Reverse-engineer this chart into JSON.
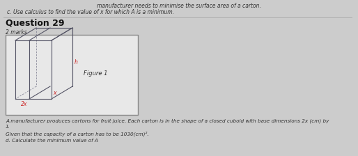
{
  "bg_color": "#cccccc",
  "panel_bg": "#e8e8e8",
  "panel_border": "#888888",
  "line1": "manufacturer needs to minimise the surface area of a carton.",
  "line2": "c. Use calculus to find the value of x for which A is a minimum.",
  "question_title": "Question 29",
  "marks": "2 marks",
  "figure_label": "Figure 1",
  "dim_h": "h",
  "dim_x": "x",
  "dim_2x": "2x",
  "body_text1": "A manufacturer produces cartons for fruit juice. Each carton is in the shape of a closed cuboid with base dimensions 2x (cm) by",
  "body_text2": "1.",
  "body_text3": "Given that the capacity of a carton has to be 1030(cm)².",
  "body_text4": "d. Calculate the minimum value of A",
  "sep_line_color": "#aaaaaa",
  "cuboid_color": "#555566",
  "cuboid_back_color": "#888899",
  "label_color": "#cc2222",
  "text_color": "#333333",
  "title_color": "#111111"
}
